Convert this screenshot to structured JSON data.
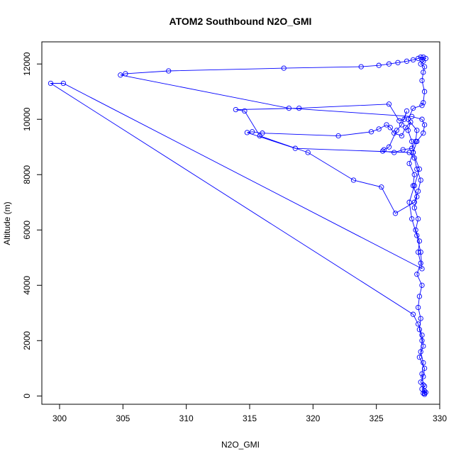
{
  "chart_data": {
    "type": "line",
    "title": "ATOM2 Southbound N2O_GMI",
    "xlabel": "N2O_GMI",
    "ylabel": "Altitude (m)",
    "xlim": [
      298.6,
      330.0
    ],
    "ylim": [
      -300,
      12800
    ],
    "xticks": [
      300,
      305,
      310,
      315,
      320,
      325,
      330
    ],
    "yticks": [
      0,
      2000,
      4000,
      6000,
      8000,
      10000,
      12000
    ],
    "grid": false,
    "legend": "none",
    "series_color": "#0000ff",
    "marker": "open-circle",
    "series": [
      {
        "x": [
          328.8,
          328.7,
          328.6,
          328.7,
          328.5,
          328.6,
          328.4,
          328.5,
          328.3,
          328.4,
          328.6,
          328.2,
          328.5,
          328.3,
          328.4,
          328.1,
          328.3,
          328.0,
          328.2,
          327.9,
          328.0,
          327.6,
          327.9,
          327.8,
          327.5,
          327.7,
          327.3,
          327.0,
          326.4,
          326.1,
          325.8,
          325.2,
          324.6,
          322.0,
          316.0,
          315.2,
          314.8,
          318.6,
          327.6,
          328.0,
          328.2,
          328.5,
          328.3,
          328.0,
          326.5,
          325.4,
          323.2,
          319.6,
          315.8,
          314.6,
          313.9,
          318.9,
          326.0,
          326.8,
          327.2,
          327.4,
          327.0,
          326.6,
          326.0,
          325.6,
          325.5,
          326.4,
          327.1,
          327.8,
          328.1,
          328.2,
          327.5,
          327.9,
          328.6,
          328.7,
          328.8,
          328.6,
          328.7,
          328.8,
          328.5,
          328.7,
          328.6,
          328.9,
          328.7,
          328.5,
          328.3,
          327.9,
          327.4,
          326.7,
          326.0,
          325.2,
          323.8,
          317.7,
          308.6,
          305.2,
          304.8,
          318.1,
          327.8,
          328.6,
          328.8,
          328.7,
          328.2,
          327.9,
          328.4,
          328.0,
          327.6,
          327.8,
          328.2,
          328.5,
          328.6,
          300.3,
          299.3,
          327.9,
          328.3,
          328.6,
          328.7,
          328.4,
          328.8,
          328.7,
          328.5,
          328.8,
          328.6,
          328.8,
          328.9,
          328.7,
          328.8
        ],
        "y": [
          100,
          400,
          800,
          1200,
          1600,
          2000,
          2400,
          2800,
          3200,
          3600,
          4000,
          4400,
          4800,
          5200,
          5600,
          6000,
          6400,
          6800,
          7200,
          7600,
          8000,
          8400,
          8800,
          9200,
          9600,
          9900,
          9700,
          9400,
          9500,
          9700,
          9800,
          9650,
          9550,
          9400,
          9500,
          9550,
          9520,
          8950,
          8800,
          8600,
          8200,
          7800,
          7400,
          7000,
          6600,
          7550,
          7800,
          8800,
          9400,
          10300,
          10350,
          10400,
          10550,
          9950,
          10000,
          10300,
          9800,
          9600,
          9000,
          8900,
          8850,
          8800,
          8900,
          8950,
          9200,
          9600,
          10000,
          10400,
          10500,
          10600,
          11000,
          11400,
          11700,
          11900,
          12000,
          12100,
          12150,
          12200,
          12250,
          12250,
          12200,
          12150,
          12100,
          12050,
          12000,
          11950,
          11900,
          11850,
          11750,
          11650,
          11600,
          10400,
          10100,
          10000,
          9800,
          9500,
          9200,
          8800,
          8200,
          7600,
          7000,
          6400,
          5800,
          5200,
          4600,
          11300,
          11300,
          2950,
          2600,
          2200,
          1800,
          1400,
          1000,
          700,
          500,
          350,
          250,
          180,
          130,
          100,
          60
        ]
      }
    ]
  }
}
